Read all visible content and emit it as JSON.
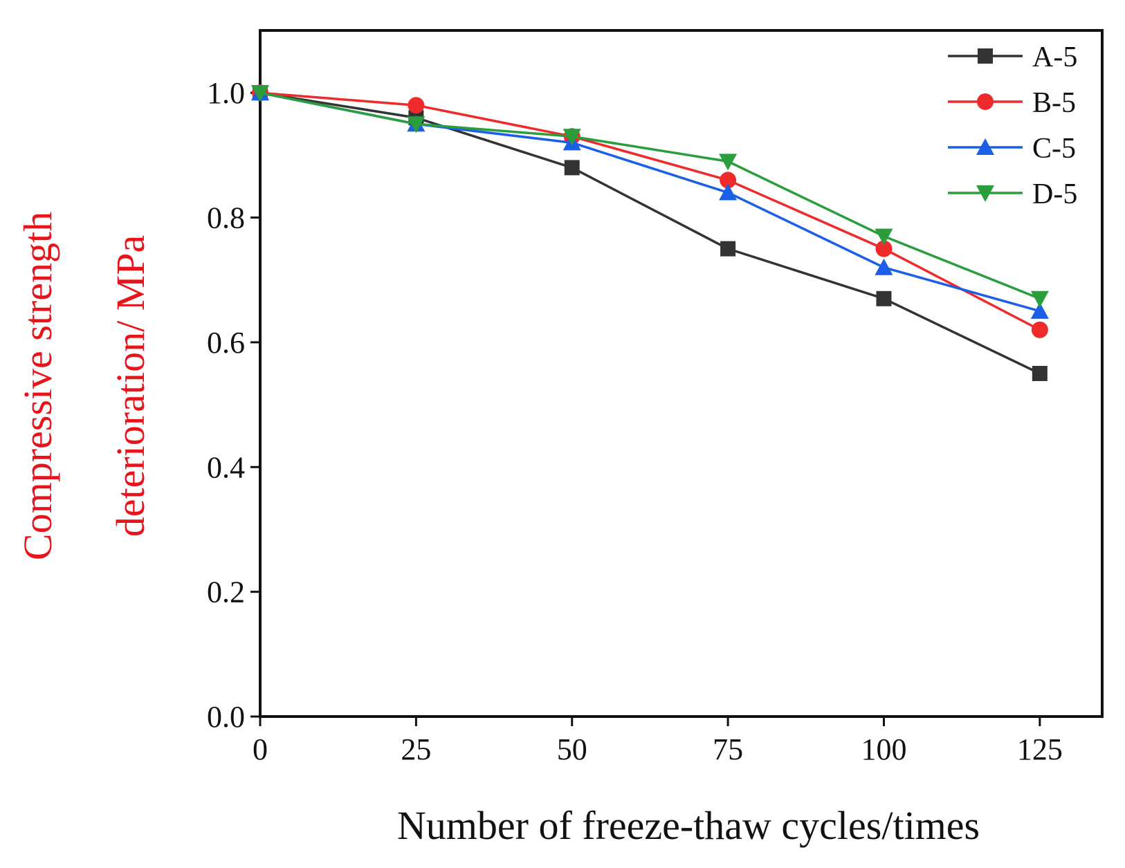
{
  "chart_data": {
    "type": "line",
    "title": "",
    "xlabel": "Number of freeze-thaw cycles/times",
    "ylabel_lines": [
      "Compressive strength",
      "deterioration/ MPa"
    ],
    "ylabel_color": "#e8141c",
    "x": [
      0,
      25,
      50,
      75,
      100,
      125
    ],
    "x_tick_labels": [
      "0",
      "25",
      "50",
      "75",
      "100",
      "125"
    ],
    "y_tick_labels": [
      "0.0",
      "0.2",
      "0.4",
      "0.6",
      "0.8",
      "1.0"
    ],
    "y_ticks": [
      0.0,
      0.2,
      0.4,
      0.6,
      0.8,
      1.0
    ],
    "xlim": [
      0,
      135
    ],
    "ylim": [
      0,
      1.1
    ],
    "grid": false,
    "legend_position": "top-right",
    "series": [
      {
        "name": "A-5",
        "color": "#333333",
        "marker": "square",
        "values": [
          1.0,
          0.96,
          0.88,
          0.75,
          0.67,
          0.55
        ]
      },
      {
        "name": "B-5",
        "color": "#ee2a2a",
        "marker": "circle",
        "values": [
          1.0,
          0.98,
          0.93,
          0.86,
          0.75,
          0.62
        ]
      },
      {
        "name": "C-5",
        "color": "#1a5fe6",
        "marker": "triangle-up",
        "values": [
          1.0,
          0.95,
          0.92,
          0.84,
          0.72,
          0.65
        ]
      },
      {
        "name": "D-5",
        "color": "#2a9d3c",
        "marker": "triangle-down",
        "values": [
          1.0,
          0.95,
          0.93,
          0.89,
          0.77,
          0.67
        ]
      }
    ]
  }
}
